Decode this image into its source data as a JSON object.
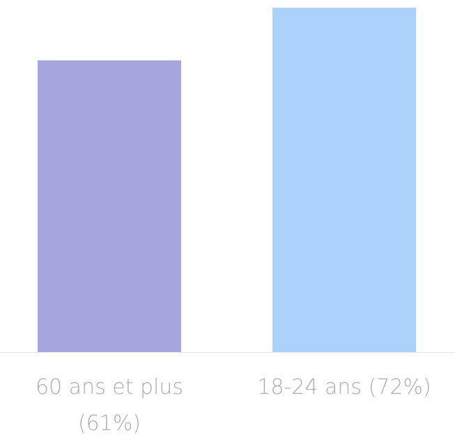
{
  "chart_data": {
    "type": "bar",
    "categories": [
      "60 ans et plus (61%)",
      "18-24 ans (72%)"
    ],
    "values": [
      61,
      72
    ],
    "colors": [
      "#a6a6de",
      "#aad2fb"
    ]
  }
}
